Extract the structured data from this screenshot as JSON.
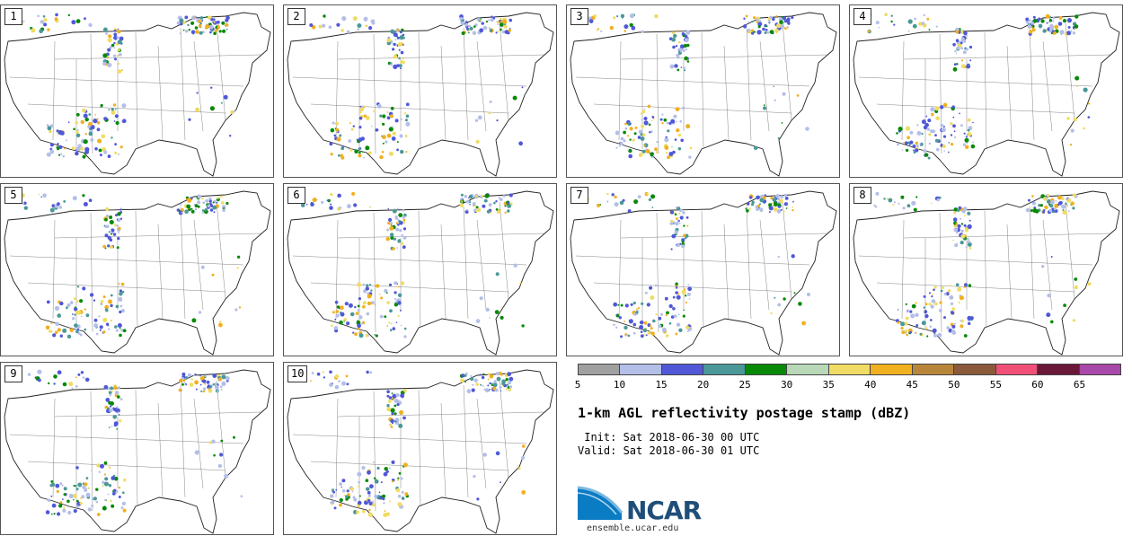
{
  "panels": [
    {
      "label": "1"
    },
    {
      "label": "2"
    },
    {
      "label": "3"
    },
    {
      "label": "4"
    },
    {
      "label": "5"
    },
    {
      "label": "6"
    },
    {
      "label": "7"
    },
    {
      "label": "8"
    },
    {
      "label": "9"
    },
    {
      "label": "10"
    }
  ],
  "legend": {
    "colors": [
      "#a0a0a0",
      "#b4bfe8",
      "#5058d8",
      "#4a9898",
      "#088a08",
      "#b8d8b8",
      "#f0dc64",
      "#f0b020",
      "#b8863a",
      "#8a5a3a",
      "#f05078",
      "#6a1838",
      "#a848a8"
    ],
    "ticks": [
      "5",
      "10",
      "15",
      "20",
      "25",
      "30",
      "35",
      "40",
      "45",
      "50",
      "55",
      "60",
      "65"
    ]
  },
  "title": "1-km AGL reflectivity postage stamp (dBZ)",
  "init": " Init: Sat 2018-06-30 00 UTC",
  "valid": "Valid: Sat 2018-06-30 01 UTC",
  "logo": {
    "text": "NCAR",
    "url_text": "ensemble.ucar.edu"
  }
}
